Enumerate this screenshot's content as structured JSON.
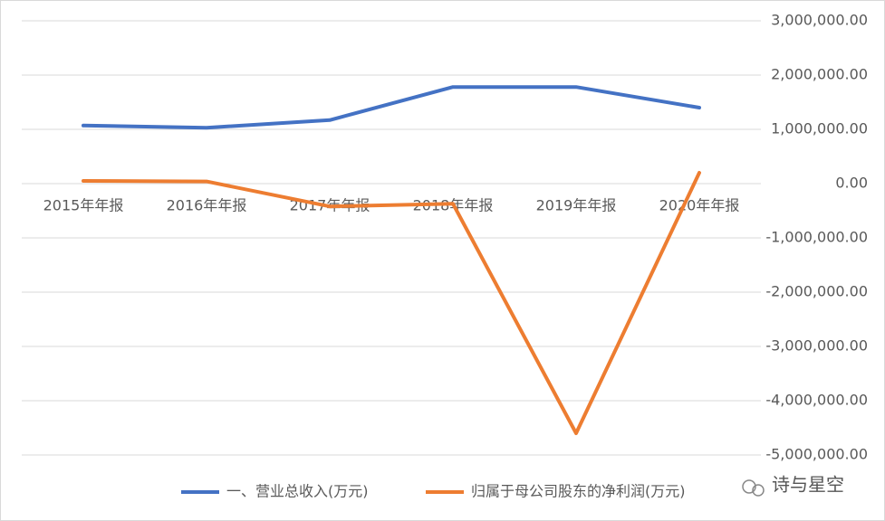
{
  "chart_data": {
    "type": "line",
    "categories": [
      "2015年年报",
      "2016年年报",
      "2017年年报",
      "2018年年报",
      "2019年年报",
      "2020年年报"
    ],
    "series": [
      {
        "name": "一、营业总收入(万元)",
        "color": "#4472c4",
        "values": [
          1070000,
          1030000,
          1170000,
          1780000,
          1780000,
          1400000
        ]
      },
      {
        "name": "归属于母公司股东的净利润(万元)",
        "color": "#ed7d31",
        "values": [
          50000,
          40000,
          -420000,
          -370000,
          -4600000,
          200000
        ]
      }
    ],
    "ylim": [
      -5000000,
      3000000
    ],
    "yticks": [
      {
        "value": -5000000,
        "label": "-5,000,000.00"
      },
      {
        "value": -4000000,
        "label": "-4,000,000.00"
      },
      {
        "value": -3000000,
        "label": "-3,000,000.00"
      },
      {
        "value": -2000000,
        "label": "-2,000,000.00"
      },
      {
        "value": -1000000,
        "label": "-1,000,000.00"
      },
      {
        "value": 0,
        "label": "0.00"
      },
      {
        "value": 1000000,
        "label": "1,000,000.00"
      },
      {
        "value": 2000000,
        "label": "2,000,000.00"
      },
      {
        "value": 3000000,
        "label": "3,000,000.00"
      }
    ],
    "grid": true,
    "y_axis_side": "right",
    "legend": "bottom",
    "watermark": "诗与星空"
  }
}
